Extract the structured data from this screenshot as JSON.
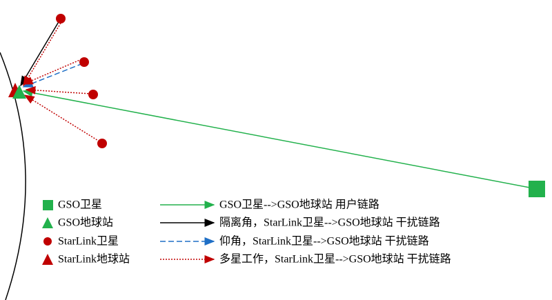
{
  "legend": {
    "symbols": [
      {
        "label": "GSO卫星"
      },
      {
        "label": "GSO地球站"
      },
      {
        "label": "StarLink卫星"
      },
      {
        "label": "StarLink地球站"
      }
    ],
    "links": [
      {
        "label": "GSO卫星-->GSO地球站 用户链路"
      },
      {
        "label": "隔离角，StarLink卫星-->GSO地球站 干扰链路"
      },
      {
        "label": "仰角，StarLink卫星-->GSO地球站 干扰链路"
      },
      {
        "label": "多星工作，StarLink卫星-->GSO地球站 干扰链路"
      }
    ]
  }
}
